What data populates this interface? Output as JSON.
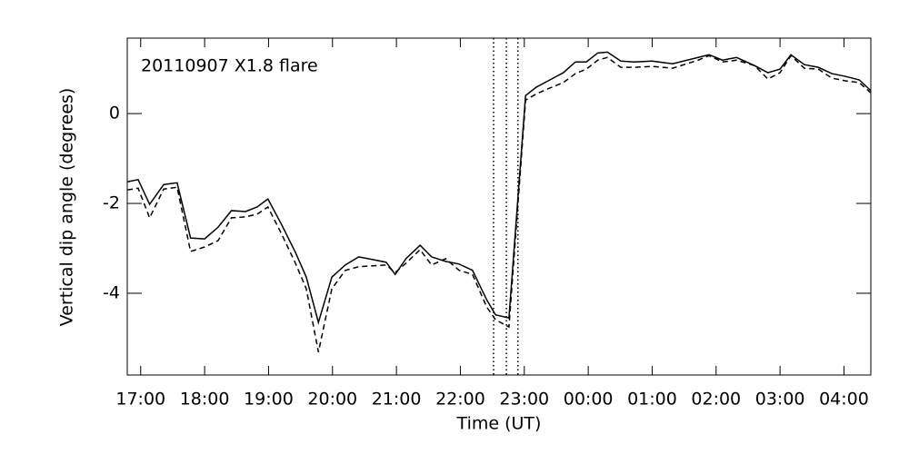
{
  "chart_data": {
    "type": "line",
    "annotation": "20110907 X1.8 flare",
    "xlabel": "Time (UT)",
    "ylabel": "Vertical dip angle (degrees)",
    "x": [
      16.79,
      16.96,
      17.14,
      17.36,
      17.57,
      17.78,
      18.0,
      18.21,
      18.42,
      18.64,
      18.82,
      18.99,
      19.2,
      19.42,
      19.59,
      19.78,
      19.99,
      20.2,
      20.41,
      20.63,
      20.84,
      20.98,
      21.15,
      21.37,
      21.55,
      21.77,
      21.98,
      22.19,
      22.41,
      22.55,
      22.76,
      23.02,
      23.19,
      23.4,
      23.61,
      23.8,
      23.97,
      24.15,
      24.3,
      24.51,
      24.72,
      25.0,
      25.32,
      25.72,
      25.89,
      26.1,
      26.32,
      26.6,
      26.81,
      27.0,
      27.17,
      27.38,
      27.6,
      27.81,
      28.02,
      28.24,
      28.42
    ],
    "series": [
      {
        "color": "#000000",
        "dashed": false,
        "values": [
          -1.52,
          -1.47,
          -2.02,
          -1.58,
          -1.54,
          -2.77,
          -2.79,
          -2.53,
          -2.16,
          -2.18,
          -2.08,
          -1.9,
          -2.46,
          -3.09,
          -3.64,
          -4.65,
          -3.64,
          -3.37,
          -3.19,
          -3.25,
          -3.31,
          -3.58,
          -3.23,
          -2.93,
          -3.19,
          -3.29,
          -3.35,
          -3.49,
          -4.14,
          -4.48,
          -4.55,
          0.4,
          0.59,
          0.75,
          0.91,
          1.15,
          1.15,
          1.35,
          1.37,
          1.17,
          1.15,
          1.17,
          1.11,
          1.25,
          1.31,
          1.19,
          1.25,
          1.07,
          0.91,
          0.99,
          1.31,
          1.09,
          1.03,
          0.89,
          0.83,
          0.75,
          0.51
        ]
      },
      {
        "color": "#000000",
        "dashed": true,
        "values": [
          -1.7,
          -1.66,
          -2.32,
          -1.68,
          -1.64,
          -3.07,
          -2.97,
          -2.83,
          -2.32,
          -2.3,
          -2.24,
          -2.08,
          -2.67,
          -3.33,
          -3.9,
          -5.31,
          -3.9,
          -3.49,
          -3.41,
          -3.39,
          -3.37,
          -3.54,
          -3.33,
          -3.03,
          -3.37,
          -3.23,
          -3.49,
          -3.58,
          -4.3,
          -4.59,
          -4.75,
          0.3,
          0.44,
          0.57,
          0.69,
          0.89,
          0.99,
          1.19,
          1.25,
          1.03,
          1.03,
          1.05,
          1.01,
          1.19,
          1.29,
          1.15,
          1.19,
          1.07,
          0.77,
          0.91,
          1.29,
          1.01,
          0.99,
          0.79,
          0.73,
          0.69,
          0.46
        ]
      }
    ],
    "vlines": [
      22.52,
      22.72,
      22.9
    ],
    "xlim": [
      16.79,
      28.42
    ],
    "ylim": [
      -5.82,
      1.68
    ],
    "xticks": [
      {
        "value": 17,
        "label": "17:00"
      },
      {
        "value": 18,
        "label": "18:00"
      },
      {
        "value": 19,
        "label": "19:00"
      },
      {
        "value": 20,
        "label": "20:00"
      },
      {
        "value": 21,
        "label": "21:00"
      },
      {
        "value": 22,
        "label": "22:00"
      },
      {
        "value": 23,
        "label": "23:00"
      },
      {
        "value": 24,
        "label": "00:00"
      },
      {
        "value": 25,
        "label": "01:00"
      },
      {
        "value": 26,
        "label": "02:00"
      },
      {
        "value": 27,
        "label": "03:00"
      },
      {
        "value": 28,
        "label": "04:00"
      }
    ],
    "yticks": [
      -4,
      -2,
      0
    ],
    "grid": false
  }
}
